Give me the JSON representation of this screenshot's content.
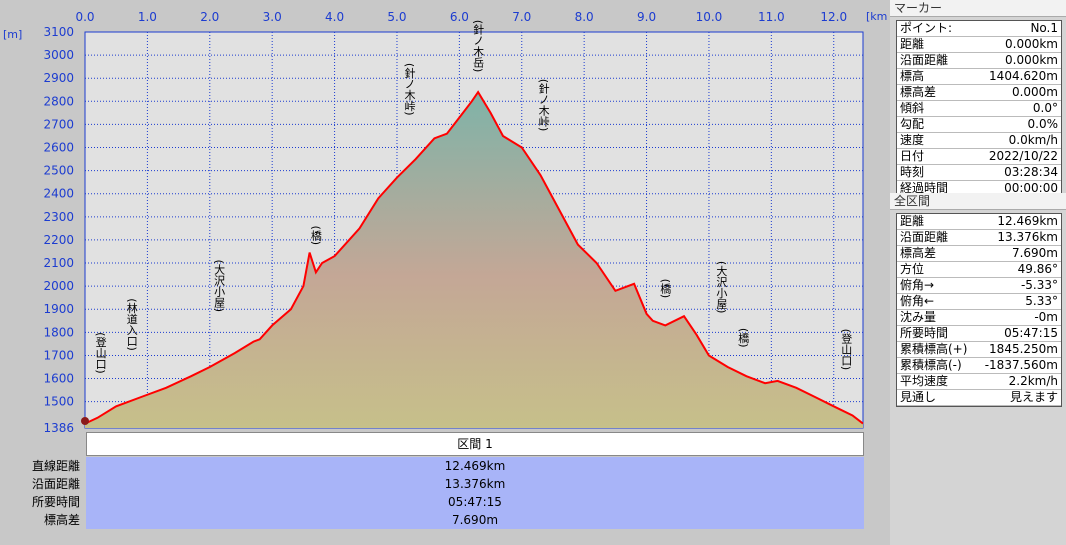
{
  "units": {
    "y": "[m]",
    "x": "[km]"
  },
  "chart_data": {
    "type": "area",
    "title": "",
    "xlabel": "[km]",
    "ylabel": "[m]",
    "xlim": [
      0,
      12.469
    ],
    "ylim": [
      1386,
      3100
    ],
    "x_ticks": [
      "0.0",
      "1.0",
      "2.0",
      "3.0",
      "4.0",
      "5.0",
      "6.0",
      "7.0",
      "8.0",
      "9.0",
      "10.0",
      "11.0",
      "12.0"
    ],
    "y_ticks": [
      "3100",
      "3000",
      "2900",
      "2800",
      "2700",
      "2600",
      "2500",
      "2400",
      "2300",
      "2200",
      "2100",
      "2000",
      "1900",
      "1800",
      "1700",
      "1600",
      "1500",
      "1386"
    ],
    "series": [
      {
        "x": [
          0,
          0.2,
          0.5,
          0.9,
          1.3,
          1.7,
          2.0,
          2.4,
          2.7,
          2.8,
          3.0,
          3.3,
          3.5,
          3.6,
          3.7,
          3.8,
          4.0,
          4.4,
          4.7,
          5.0,
          5.3,
          5.6,
          5.8,
          6.0,
          6.2,
          6.3,
          6.5,
          6.7,
          7.0,
          7.3,
          7.6,
          7.9,
          8.2,
          8.5,
          8.8,
          9.0,
          9.1,
          9.3,
          9.6,
          9.8,
          10.0,
          10.3,
          10.6,
          10.9,
          11.1,
          11.4,
          11.7,
          12.0,
          12.3,
          12.469
        ],
        "y": [
          1405,
          1430,
          1480,
          1520,
          1560,
          1610,
          1650,
          1710,
          1760,
          1770,
          1830,
          1900,
          2000,
          2145,
          2060,
          2100,
          2130,
          2250,
          2380,
          2470,
          2550,
          2640,
          2660,
          2730,
          2800,
          2840,
          2750,
          2650,
          2600,
          2480,
          2330,
          2180,
          2100,
          1980,
          2010,
          1880,
          1850,
          1830,
          1870,
          1790,
          1700,
          1650,
          1610,
          1580,
          1590,
          1560,
          1520,
          1480,
          1440,
          1405
        ]
      }
    ],
    "annotations": [
      {
        "text": "(登山口)",
        "x": 0.25
      },
      {
        "text": "(林道入口)",
        "x": 0.75
      },
      {
        "text": "(大沢小屋)",
        "x": 2.15
      },
      {
        "text": "(橋)",
        "x": 3.7
      },
      {
        "text": "(針ノ木峠)",
        "x": 5.2
      },
      {
        "text": "(針ノ木岳)",
        "x": 6.3
      },
      {
        "text": "(針ノ木峠)",
        "x": 7.35
      },
      {
        "text": "(橋)",
        "x": 9.3
      },
      {
        "text": "(大沢小屋)",
        "x": 10.2
      },
      {
        "text": "(橋)",
        "x": 10.55
      },
      {
        "text": "(登山口)",
        "x": 12.2
      }
    ],
    "grid": true
  },
  "summary": {
    "header": "区間 1",
    "rows": [
      {
        "label": "直線距離",
        "value": "12.469km"
      },
      {
        "label": "沿面距離",
        "value": "13.376km"
      },
      {
        "label": "所要時間",
        "value": "05:47:15"
      },
      {
        "label": "標高差",
        "value": "7.690m"
      }
    ]
  },
  "marker": {
    "title": "マーカー",
    "rows": [
      {
        "k": "ポイント:",
        "v": "No.1"
      },
      {
        "k": "距離",
        "v": "0.000km"
      },
      {
        "k": "沿面距離",
        "v": "0.000km"
      },
      {
        "k": "標高",
        "v": "1404.620m"
      },
      {
        "k": "標高差",
        "v": "0.000m"
      },
      {
        "k": "傾斜",
        "v": "0.0°"
      },
      {
        "k": "勾配",
        "v": "0.0%"
      },
      {
        "k": "速度",
        "v": "0.0km/h"
      },
      {
        "k": "日付",
        "v": "2022/10/22"
      },
      {
        "k": "時刻",
        "v": "03:28:34"
      },
      {
        "k": "経過時間",
        "v": "00:00:00"
      }
    ]
  },
  "whole": {
    "title": "全区間",
    "rows": [
      {
        "k": "距離",
        "v": "12.469km"
      },
      {
        "k": "沿面距離",
        "v": "13.376km"
      },
      {
        "k": "標高差",
        "v": "7.690m"
      },
      {
        "k": "方位",
        "v": "49.86°"
      },
      {
        "k": "俯角→",
        "v": "-5.33°"
      },
      {
        "k": "俯角←",
        "v": "5.33°"
      },
      {
        "k": "沈み量",
        "v": "-0m"
      },
      {
        "k": "所要時間",
        "v": "05:47:15"
      },
      {
        "k": "累積標高(+)",
        "v": "1845.250m"
      },
      {
        "k": "累積標高(-)",
        "v": "-1837.560m"
      },
      {
        "k": "平均速度",
        "v": "2.2km/h"
      },
      {
        "k": "見通し",
        "v": "見えます"
      }
    ]
  }
}
